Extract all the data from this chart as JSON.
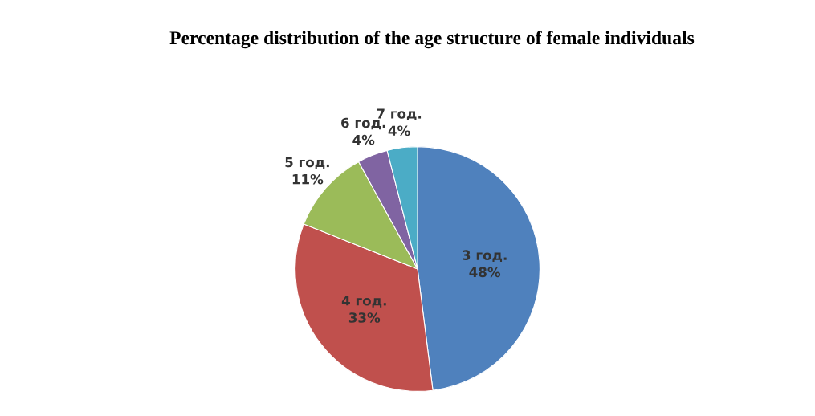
{
  "chart_data": {
    "type": "pie",
    "title": "Percentage distribution of the age structure of female individuals",
    "categories": [
      "3 год.",
      "4 год.",
      "5 год.",
      "6 год.",
      "7 год."
    ],
    "values": [
      48,
      33,
      11,
      4,
      4
    ],
    "value_labels": [
      "48%",
      "33%",
      "11%",
      "4%",
      "4%"
    ],
    "colors": [
      "#4f81bd",
      "#c0504d",
      "#9bbb59",
      "#8064a2",
      "#4bacc6"
    ]
  }
}
